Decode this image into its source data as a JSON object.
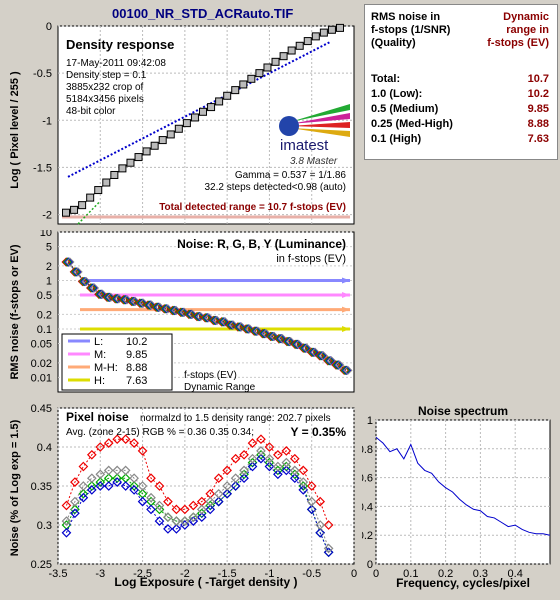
{
  "title": "00100_NR_STD_ACRauto.TIF",
  "summary": {
    "header_left": [
      "RMS noise in",
      "f-stops (1/SNR)",
      "(Quality)"
    ],
    "header_right": [
      "Dynamic",
      "range in",
      "f-stops (EV)"
    ],
    "rows": [
      {
        "label": "Total:",
        "value": "10.7"
      },
      {
        "label": "1.0  (Low):",
        "value": "10.2"
      },
      {
        "label": "0.5  (Medium)",
        "value": "9.85"
      },
      {
        "label": "0.25 (Med-High)",
        "value": "8.88"
      },
      {
        "label": "0.1  (High)",
        "value": "7.63"
      }
    ]
  },
  "density": {
    "heading": "Density response",
    "info": [
      "17-May-2011 09:42:08",
      "Density step = 0.1",
      "3885x232 crop of",
      "5184x3456 pixels",
      "48-bit color"
    ],
    "logo": "imatest",
    "version": "3.8  Master",
    "gamma": "Gamma = 0.537 = 1/1.86",
    "steps": "32.2 steps detected<0.98 (auto)",
    "total_range": "Total detected range = 10.7 f-stops (EV)",
    "ylabel": "Log ( Pixel level / 255 )",
    "yticks": [
      "0",
      "-0.5",
      "-1",
      "-1.5",
      "-2"
    ]
  },
  "noise": {
    "heading": "Noise: R, G, B, Y (Luminance)",
    "subheading": "in f-stops (EV)",
    "ylabel": "RMS noise (f-stops or EV)",
    "yticks": [
      "10",
      "5",
      "2",
      "1",
      "0.5",
      "0.2",
      "0.1",
      "0.05",
      "0.02",
      "0.01"
    ],
    "legend": [
      {
        "label": "L:",
        "value": "10.2",
        "color": "#8888ff"
      },
      {
        "label": "M:",
        "value": "9.85",
        "color": "#ff88ff"
      },
      {
        "label": "M-H:",
        "value": "8.88",
        "color": "#ffaa77"
      },
      {
        "label": "H:",
        "value": "7.63",
        "color": "#dddd00"
      }
    ],
    "note1": "f-stops (EV)",
    "note2": "Dynamic Range"
  },
  "pixel": {
    "heading": "Pixel noise",
    "normalized": "normalzd to 1.5 density range: 202.7 pixels",
    "avg": "Avg. (zone 2-15) RGB % = 0.36  0.35  0.34;",
    "y": "Y = 0.35%",
    "ylabel": "Noise (% of Log exp = 1.5)",
    "xlabel": "Log Exposure ( -Target density )",
    "yticks": [
      "0.45",
      "0.4",
      "0.35",
      "0.3",
      "0.25"
    ],
    "xticks": [
      "-3.5",
      "-3",
      "-2.5",
      "-2",
      "-1.5",
      "-1",
      "-0.5",
      "0"
    ]
  },
  "spectrum": {
    "title": "Noise spectrum",
    "xlabel": "Frequency, cycles/pixel",
    "yticks": [
      "1",
      "0.8",
      "0.6",
      "0.4",
      "0.2",
      "0"
    ],
    "xticks": [
      "0",
      "0.1",
      "0.2",
      "0.3",
      "0.4"
    ]
  },
  "chart_data": [
    {
      "type": "line",
      "title": "Density response",
      "ylabel": "Log ( Pixel level / 255 )",
      "ylim": [
        -2.1,
        0
      ],
      "series": [
        {
          "values": [
            -1.98,
            -1.95,
            -1.9,
            -1.82,
            -1.74,
            -1.66,
            -1.58,
            -1.51,
            -1.45,
            -1.39,
            -1.33,
            -1.27,
            -1.21,
            -1.15,
            -1.09,
            -1.03,
            -0.97,
            -0.91,
            -0.86,
            -0.8,
            -0.74,
            -0.68,
            -0.62,
            -0.56,
            -0.5,
            -0.44,
            -0.38,
            -0.32,
            -0.26,
            -0.21,
            -0.16,
            -0.11,
            -0.07,
            -0.04,
            -0.02
          ]
        },
        {
          "values": [
            -1.6,
            -0.17
          ]
        }
      ]
    },
    {
      "type": "line",
      "title": "Noise: R, G, B, Y (Luminance)",
      "ylabel": "RMS noise (f-stops or EV)",
      "ylim": [
        0.005,
        10
      ],
      "log_scale": true,
      "series": [
        {
          "values": [
            2.4,
            1.5,
            0.95,
            0.7,
            0.52,
            0.45,
            0.42,
            0.4,
            0.37,
            0.34,
            0.31,
            0.28,
            0.26,
            0.24,
            0.22,
            0.2,
            0.18,
            0.17,
            0.15,
            0.14,
            0.12,
            0.11,
            0.1,
            0.09,
            0.08,
            0.07,
            0.063,
            0.055,
            0.048,
            0.04,
            0.033,
            0.028,
            0.022,
            0.018,
            0.014
          ]
        },
        {
          "name": "L:",
          "values": [
            1
          ]
        },
        {
          "name": "M:",
          "values": [
            0.5
          ]
        },
        {
          "name": "M-H:",
          "values": [
            0.25
          ]
        },
        {
          "name": "H:",
          "values": [
            0.1
          ]
        }
      ]
    },
    {
      "type": "line",
      "title": "Pixel noise",
      "xlabel": "Log Exposure ( -Target density )",
      "ylabel": "Noise (% of Log exp = 1.5)",
      "ylim": [
        0.25,
        0.45
      ],
      "xlim": [
        -3.5,
        0
      ],
      "x": [
        -3.4,
        -3.3,
        -3.2,
        -3.1,
        -3.0,
        -2.9,
        -2.8,
        -2.7,
        -2.6,
        -2.5,
        -2.4,
        -2.3,
        -2.2,
        -2.1,
        -2.0,
        -1.9,
        -1.8,
        -1.7,
        -1.6,
        -1.5,
        -1.4,
        -1.3,
        -1.2,
        -1.1,
        -1.0,
        -0.9,
        -0.8,
        -0.7,
        -0.6,
        -0.5,
        -0.4,
        -0.3
      ],
      "series": [
        {
          "name": "R",
          "values": [
            0.325,
            0.355,
            0.375,
            0.39,
            0.4,
            0.405,
            0.41,
            0.41,
            0.405,
            0.395,
            0.36,
            0.35,
            0.33,
            0.32,
            0.32,
            0.325,
            0.33,
            0.34,
            0.36,
            0.37,
            0.385,
            0.39,
            0.405,
            0.41,
            0.4,
            0.39,
            0.395,
            0.385,
            0.37,
            0.35,
            0.33,
            0.3
          ]
        },
        {
          "name": "G",
          "values": [
            0.3,
            0.32,
            0.34,
            0.35,
            0.355,
            0.36,
            0.36,
            0.36,
            0.35,
            0.34,
            0.33,
            0.32,
            0.31,
            0.305,
            0.305,
            0.31,
            0.315,
            0.325,
            0.33,
            0.34,
            0.35,
            0.365,
            0.38,
            0.39,
            0.38,
            0.37,
            0.375,
            0.365,
            0.35,
            0.32,
            0.29,
            0.265
          ]
        },
        {
          "name": "B",
          "values": [
            0.29,
            0.315,
            0.335,
            0.345,
            0.35,
            0.35,
            0.355,
            0.35,
            0.345,
            0.33,
            0.32,
            0.305,
            0.295,
            0.295,
            0.3,
            0.305,
            0.31,
            0.32,
            0.33,
            0.34,
            0.35,
            0.36,
            0.375,
            0.385,
            0.375,
            0.365,
            0.37,
            0.36,
            0.345,
            0.32,
            0.29,
            0.265
          ]
        },
        {
          "name": "Y",
          "values": [
            0.305,
            0.33,
            0.35,
            0.36,
            0.365,
            0.37,
            0.37,
            0.37,
            0.36,
            0.35,
            0.335,
            0.325,
            0.31,
            0.305,
            0.305,
            0.31,
            0.32,
            0.33,
            0.34,
            0.35,
            0.36,
            0.37,
            0.385,
            0.395,
            0.385,
            0.375,
            0.38,
            0.37,
            0.355,
            0.33,
            0.3,
            0.27
          ]
        }
      ]
    },
    {
      "type": "line",
      "title": "Noise spectrum",
      "xlabel": "Frequency, cycles/pixel",
      "ylim": [
        0,
        1
      ],
      "xlim": [
        0,
        0.5
      ],
      "x": [
        0,
        0.02,
        0.04,
        0.06,
        0.08,
        0.1,
        0.12,
        0.14,
        0.16,
        0.18,
        0.2,
        0.22,
        0.24,
        0.26,
        0.28,
        0.3,
        0.32,
        0.34,
        0.36,
        0.38,
        0.4,
        0.42,
        0.44,
        0.46,
        0.48,
        0.5
      ],
      "values": [
        0.88,
        0.84,
        0.78,
        0.8,
        0.73,
        0.83,
        0.7,
        0.65,
        0.63,
        0.57,
        0.53,
        0.5,
        0.45,
        0.41,
        0.38,
        0.37,
        0.33,
        0.32,
        0.29,
        0.26,
        0.27,
        0.24,
        0.22,
        0.21,
        0.21,
        0.2
      ]
    }
  ]
}
